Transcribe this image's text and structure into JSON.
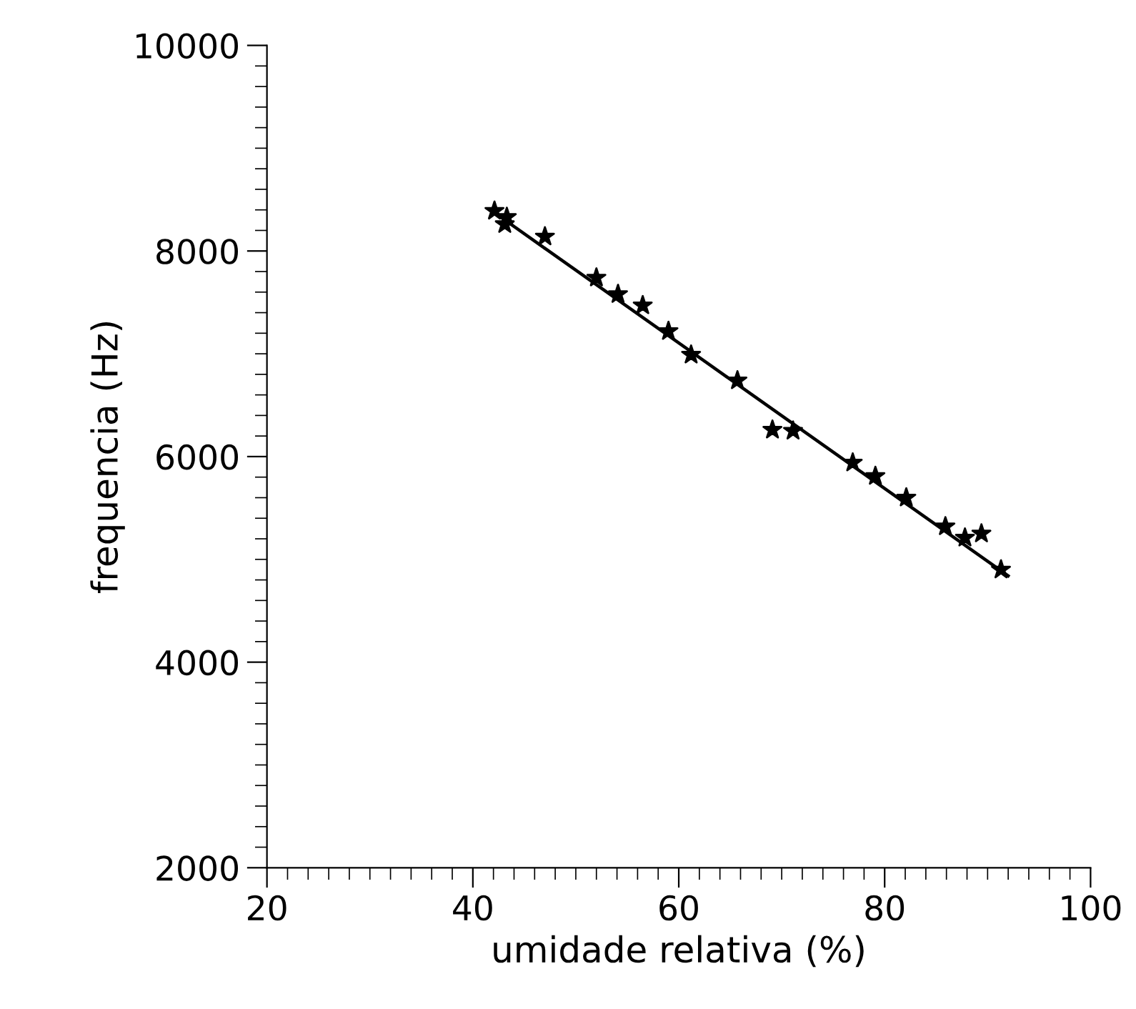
{
  "chart_data": {
    "type": "scatter",
    "xlabel": "umidade relativa (%)",
    "ylabel": "frequencia (Hz)",
    "xlim": [
      20,
      100
    ],
    "ylim": [
      2000,
      10000
    ],
    "xticks": [
      20,
      40,
      60,
      80,
      100
    ],
    "yticks": [
      2000,
      4000,
      6000,
      8000,
      10000
    ],
    "grid": false,
    "series": [
      {
        "marker": "star",
        "color": "#000000",
        "x": [
          42.1,
          43.3,
          43.1,
          47.0,
          52.0,
          54.1,
          56.5,
          59.0,
          61.2,
          65.7,
          69.1,
          71.1,
          76.9,
          79.1,
          82.1,
          85.9,
          87.8,
          89.4,
          91.3
        ],
        "values": [
          8390,
          8330,
          8260,
          8140,
          7740,
          7580,
          7470,
          7220,
          6990,
          6740,
          6260,
          6250,
          5940,
          5810,
          5600,
          5320,
          5210,
          5250,
          4900
        ]
      },
      {
        "type": "line",
        "marker": "none",
        "line_style": "solid",
        "color": "#000000",
        "x": [
          42,
          92
        ],
        "values": [
          8380,
          4840
        ]
      }
    ]
  }
}
